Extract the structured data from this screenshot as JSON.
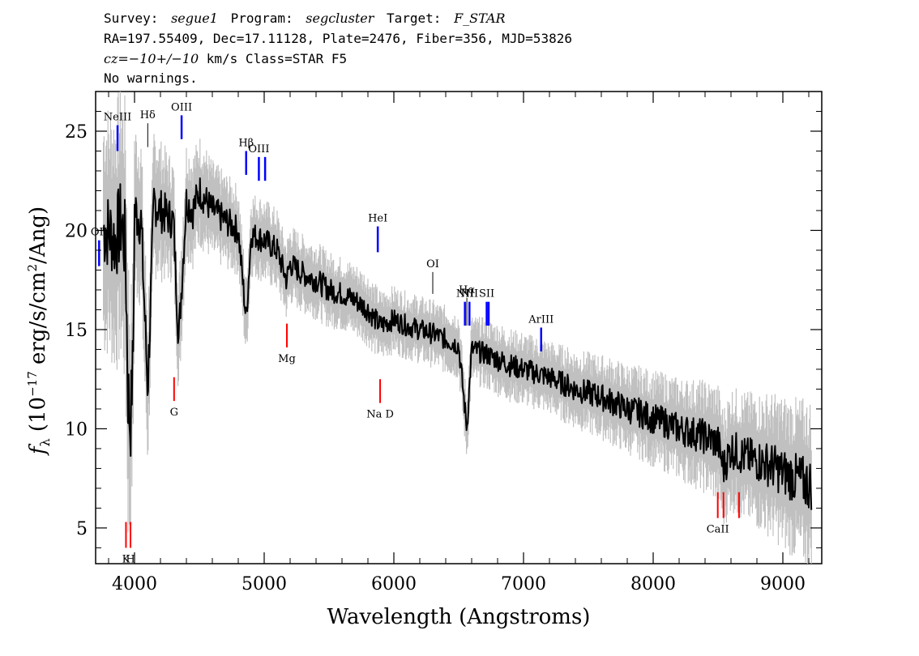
{
  "header": {
    "line1": {
      "survey_label": "Survey:",
      "survey": "segue1",
      "program_label": "Program:",
      "program": "segcluster",
      "target_label": "Target:",
      "target": "F_STAR"
    },
    "line2": "RA=197.55409, Dec=17.11128, Plate=2476, Fiber=356, MJD=53826",
    "line3": {
      "cz": "cz=−10+/−10",
      "rest": " km/s Class=STAR F5"
    },
    "line4": "No warnings."
  },
  "chart_data": {
    "type": "line",
    "xlabel": "Wavelength (Angstroms)",
    "ylabel": "fλ (10⁻¹⁷ erg/s/cm²/Ang)",
    "xlim": [
      3700,
      9300
    ],
    "ylim": [
      3.2,
      27
    ],
    "x_ticks": [
      4000,
      5000,
      6000,
      7000,
      8000,
      9000
    ],
    "y_ticks": [
      5,
      10,
      15,
      20,
      25
    ],
    "grid": false,
    "series": [
      {
        "style": "error",
        "color": "#c0c0c0",
        "x": [
          3800,
          3850,
          3900,
          3950,
          4000,
          4100,
          4200,
          4300,
          4400,
          4500,
          4600,
          4700,
          4800,
          4900,
          5000,
          5200,
          5400,
          5600,
          5800,
          6000,
          6200,
          6400,
          6600,
          6800,
          7000,
          7200,
          7400,
          7600,
          7800,
          8000,
          8200,
          8400,
          8600,
          8800,
          9000,
          9200
        ],
        "values": [
          4.5,
          4.8,
          5.0,
          5.5,
          3.2,
          3.0,
          2.5,
          2.2,
          2.1,
          2.0,
          1.8,
          1.7,
          1.6,
          1.5,
          1.5,
          1.4,
          1.4,
          1.3,
          1.3,
          1.2,
          1.2,
          1.2,
          1.2,
          1.3,
          1.3,
          1.3,
          1.4,
          1.5,
          1.6,
          1.7,
          1.8,
          2.0,
          2.2,
          2.4,
          2.7,
          3.0
        ]
      },
      {
        "style": "flux",
        "color": "#000000",
        "x": [
          3800,
          3850,
          3900,
          3930,
          3950,
          3968,
          3990,
          4000,
          4050,
          4102,
          4150,
          4200,
          4300,
          4340,
          4400,
          4450,
          4500,
          4600,
          4700,
          4800,
          4861,
          4900,
          5000,
          5100,
          5172,
          5200,
          5300,
          5400,
          5500,
          5600,
          5700,
          5800,
          5893,
          6000,
          6100,
          6200,
          6300,
          6400,
          6500,
          6563,
          6600,
          6700,
          6800,
          6900,
          7000,
          7100,
          7200,
          7300,
          7400,
          7500,
          7600,
          7700,
          7800,
          7900,
          8000,
          8100,
          8200,
          8300,
          8400,
          8500,
          8542,
          8600,
          8700,
          8800,
          8900,
          9000,
          9100,
          9200
        ],
        "values": [
          20,
          19.5,
          20.5,
          19.0,
          12.0,
          10.0,
          14.0,
          21.0,
          20.5,
          12.0,
          21.5,
          21.0,
          20.5,
          14.5,
          21.5,
          21.0,
          22.0,
          21.0,
          20.5,
          20.0,
          15.5,
          19.8,
          19.5,
          19.0,
          17.5,
          18.3,
          17.8,
          17.5,
          17.0,
          16.8,
          16.5,
          16.0,
          15.2,
          15.5,
          15.2,
          15.0,
          14.8,
          14.5,
          14.2,
          10.0,
          14.0,
          13.8,
          13.5,
          13.2,
          13.0,
          12.8,
          12.6,
          12.3,
          12.0,
          11.8,
          11.6,
          11.3,
          11.0,
          10.8,
          10.5,
          10.3,
          10.0,
          9.8,
          9.6,
          9.3,
          8.0,
          9.0,
          8.6,
          8.4,
          8.2,
          7.8,
          7.5,
          7.2
        ]
      }
    ],
    "emission_lines": [
      {
        "label": "OII",
        "x": 3727,
        "color": "#0000ff",
        "y_bottom": 18.2,
        "y_top": 19.5
      },
      {
        "label": "NeIII",
        "x": 3869,
        "color": "#0000ff",
        "y_bottom": 24.0,
        "y_top": 25.3
      },
      {
        "label": "Hδ",
        "x": 4102,
        "color": "#000000",
        "y_bottom": 24.2,
        "y_top": 25.4
      },
      {
        "label": "OIII",
        "x": 4363,
        "color": "#0000ff",
        "y_bottom": 24.6,
        "y_top": 25.8
      },
      {
        "label": "Hβ",
        "x": 4861,
        "color": "#0000ff",
        "y_bottom": 22.8,
        "y_top": 24.0
      },
      {
        "label": "OIII",
        "x": 4959,
        "color": "#0000ff",
        "y_bottom": 22.5,
        "y_top": 23.7
      },
      {
        "label": "",
        "x": 5007,
        "color": "#0000ff",
        "y_bottom": 22.5,
        "y_top": 23.7
      },
      {
        "label": "HeI",
        "x": 5876,
        "color": "#0000ff",
        "y_bottom": 18.9,
        "y_top": 20.2
      },
      {
        "label": "OI",
        "x": 6300,
        "color": "#000000",
        "y_bottom": 16.8,
        "y_top": 17.9
      },
      {
        "label": "NII",
        "x": 6548,
        "color": "#0000ff",
        "y_bottom": 15.2,
        "y_top": 16.4
      },
      {
        "label": "Hα",
        "x": 6563,
        "color": "#000000",
        "y_bottom": 15.2,
        "y_top": 16.6
      },
      {
        "label": "NII",
        "x": 6583,
        "color": "#0000ff",
        "y_bottom": 15.2,
        "y_top": 16.4
      },
      {
        "label": "SII",
        "x": 6716,
        "color": "#0000ff",
        "y_bottom": 15.2,
        "y_top": 16.4
      },
      {
        "label": "",
        "x": 6731,
        "color": "#0000ff",
        "y_bottom": 15.2,
        "y_top": 16.4
      },
      {
        "label": "ArIII",
        "x": 7136,
        "color": "#0000ff",
        "y_bottom": 13.9,
        "y_top": 15.1
      }
    ],
    "absorption_lines": [
      {
        "label": "K",
        "x": 3934,
        "color": "#ff0000",
        "y_bottom": 4.0,
        "y_top": 5.3
      },
      {
        "label": "H",
        "x": 3969,
        "color": "#ff0000",
        "y_bottom": 4.0,
        "y_top": 5.3
      },
      {
        "label": "G",
        "x": 4305,
        "color": "#ff0000",
        "y_bottom": 11.4,
        "y_top": 12.6
      },
      {
        "label": "Mg",
        "x": 5175,
        "color": "#ff0000",
        "y_bottom": 14.1,
        "y_top": 15.3
      },
      {
        "label": "Na D",
        "x": 5894,
        "color": "#ff0000",
        "y_bottom": 11.3,
        "y_top": 12.5
      },
      {
        "label": "CaII",
        "x": 8498,
        "color": "#ff0000",
        "y_bottom": 5.5,
        "y_top": 6.8
      },
      {
        "label": "",
        "x": 8542,
        "color": "#ff0000",
        "y_bottom": 5.5,
        "y_top": 6.8
      },
      {
        "label": "",
        "x": 8662,
        "color": "#ff0000",
        "y_bottom": 5.5,
        "y_top": 6.8
      }
    ]
  }
}
